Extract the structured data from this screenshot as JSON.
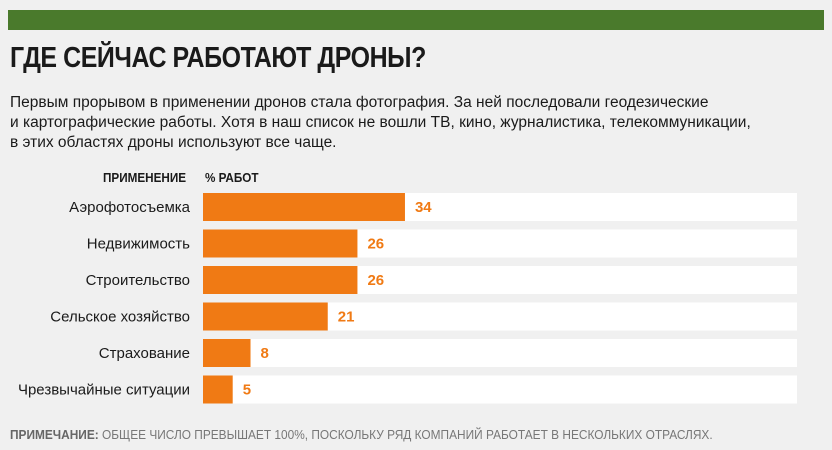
{
  "header": {
    "title": "ГДЕ СЕЙЧАС РАБОТАЮТ ДРОНЫ?",
    "intro": "Первым прорывом в применении дронов стала фотография. За ней последовали геодезические\nи картографические работы. Хотя в наш список не вошли ТВ, кино, журналистика, телекоммуникации,\nв этих областях дроны используют все чаще."
  },
  "columns": {
    "application": "ПРИМЕНЕНИЕ",
    "percent": "% РАБОТ"
  },
  "colors": {
    "band": "#4a7a2c",
    "bar": "#f07a14",
    "track": "#ffffff",
    "value": "#f07a14"
  },
  "chart_data": {
    "type": "bar",
    "orientation": "horizontal",
    "categories": [
      "Аэрофотосъемка",
      "Недвижимость",
      "Строительство",
      "Сельское хозяйство",
      "Страхование",
      "Чрезвычайные ситуации"
    ],
    "values": [
      34,
      26,
      26,
      21,
      8,
      5
    ],
    "xlim": [
      0,
      100
    ],
    "grid": false,
    "legend": "none"
  },
  "note": {
    "label": "ПРИМЕЧАНИЕ:",
    "text": "ОБЩЕЕ ЧИСЛО ПРЕВЫШАЕТ 100%, ПОСКОЛЬКУ РЯД КОМПАНИЙ РАБОТАЕТ В НЕСКОЛЬКИХ ОТРАСЛЯХ."
  }
}
